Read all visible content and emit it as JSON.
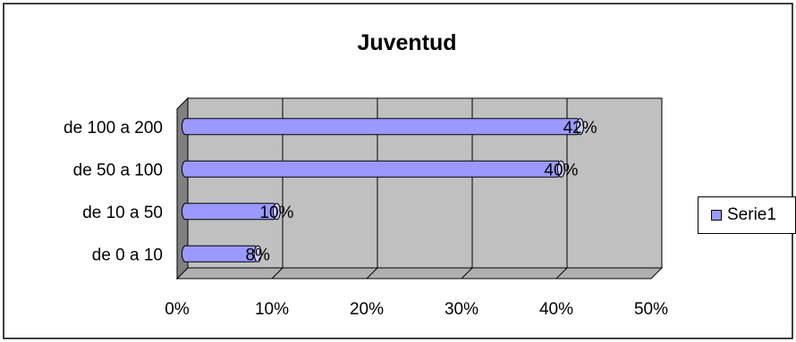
{
  "chart_data": {
    "type": "bar",
    "orientation": "horizontal",
    "title": "Juventud",
    "categories": [
      "de 0 a 10",
      "de 10 a 50",
      "de 50 a 100",
      "de 100 a 200"
    ],
    "series": [
      {
        "name": "Serie1",
        "values": [
          8,
          10,
          40,
          42
        ]
      }
    ],
    "data_labels": [
      "8%",
      "10%",
      "40%",
      "42%"
    ],
    "x_ticks": [
      "0%",
      "10%",
      "20%",
      "30%",
      "40%",
      "50%"
    ],
    "xlim": [
      0,
      50
    ],
    "grid": true,
    "legend_position": "right",
    "colors": {
      "bar_fill": "#9999ff",
      "bar_end": "#ccccff",
      "plot_back": "#c0c0c0",
      "plot_side": "#808080",
      "plot_floor": "#b0b0b0",
      "grid": "#000000"
    }
  }
}
